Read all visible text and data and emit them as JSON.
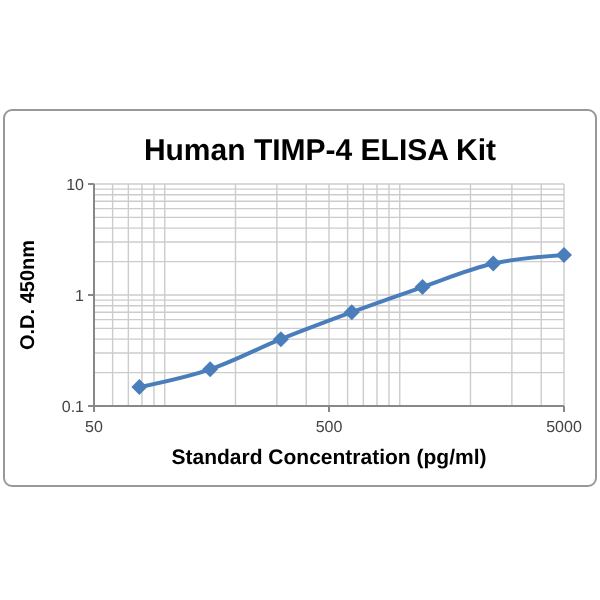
{
  "chart_data": {
    "type": "line",
    "title": "Human TIMP-4 ELISA Kit",
    "xlabel": "Standard Concentration (pg/ml)",
    "ylabel": "O.D.  450nm",
    "x": [
      78,
      156,
      312,
      625,
      1250,
      2500,
      5000
    ],
    "series": [
      {
        "color": "#4a7ebb",
        "values": [
          0.148,
          0.214,
          0.4,
          0.7,
          1.18,
          1.92,
          2.29
        ]
      }
    ],
    "xlim": [
      50,
      5000
    ],
    "ylim": [
      0.1,
      10
    ],
    "xticks": [
      50,
      500,
      5000
    ],
    "yticks": [
      0.1,
      1,
      10
    ],
    "log": "xy",
    "grid": true,
    "marker": "diamond",
    "line_style": "solid"
  }
}
